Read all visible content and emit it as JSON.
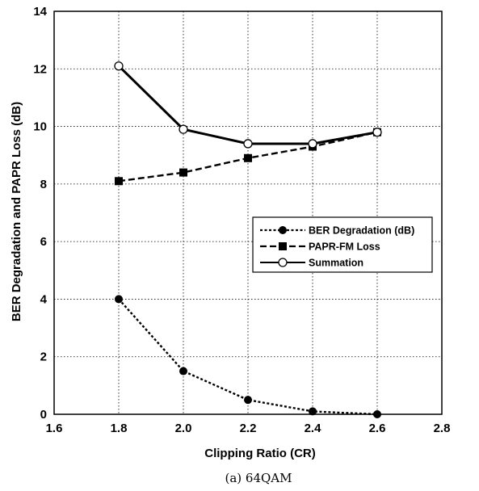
{
  "chart_data": {
    "type": "line",
    "caption": "(a) 64QAM",
    "xlabel": "Clipping Ratio (CR)",
    "ylabel": "BER Degradation and PAPR Loss (dB)",
    "xlim": [
      1.6,
      2.8
    ],
    "ylim": [
      0,
      14
    ],
    "xticks": [
      "1.6",
      "1.8",
      "2.0",
      "2.2",
      "2.4",
      "2.6",
      "2.8"
    ],
    "yticks": [
      "0",
      "2",
      "4",
      "6",
      "8",
      "10",
      "12",
      "14"
    ],
    "grid": true,
    "legend_position": "right",
    "series": [
      {
        "name": "BER Degradation (dB)",
        "marker": "filled-circle",
        "line": "dotted",
        "color": "#000000",
        "x": [
          1.8,
          2.0,
          2.2,
          2.4,
          2.6
        ],
        "y": [
          4.0,
          1.5,
          0.5,
          0.1,
          0.0
        ]
      },
      {
        "name": "PAPR-FM Loss",
        "marker": "filled-square",
        "line": "dashed",
        "color": "#000000",
        "x": [
          1.8,
          2.0,
          2.2,
          2.4,
          2.6
        ],
        "y": [
          8.1,
          8.4,
          8.9,
          9.3,
          9.8
        ]
      },
      {
        "name": "Summation",
        "marker": "open-circle",
        "line": "solid",
        "color": "#000000",
        "x": [
          1.8,
          2.0,
          2.2,
          2.4,
          2.6
        ],
        "y": [
          12.1,
          9.9,
          9.4,
          9.4,
          9.8
        ]
      }
    ]
  }
}
